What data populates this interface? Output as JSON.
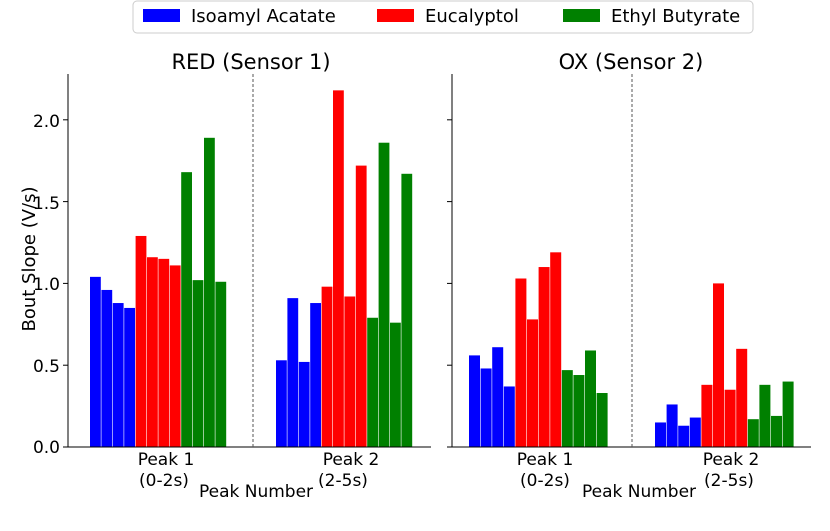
{
  "chart_data": {
    "type": "bar",
    "ylabel": "Bout Slope (V/s)",
    "ylim": [
      0,
      2.28
    ],
    "yticks": [
      0.0,
      0.5,
      1.0,
      1.5,
      2.0
    ],
    "ytick_labels": [
      "0.0",
      "0.5",
      "1.0",
      "1.5",
      "2.0"
    ],
    "legend": {
      "placement": "top-center",
      "entries": [
        {
          "name": "Isoamyl Acatate",
          "color": "#0000ff"
        },
        {
          "name": "Eucalyptol",
          "color": "#ff0000"
        },
        {
          "name": "Ethyl Butyrate",
          "color": "#008000"
        }
      ]
    },
    "panels": [
      {
        "title": "RED (Sensor 1)",
        "xlabel": "Peak Number",
        "categories": [
          {
            "line1": "Peak 1",
            "line2": "(0-2s)"
          },
          {
            "line1": "Peak 2",
            "line2": "(2-5s)"
          }
        ],
        "series": [
          {
            "name": "Isoamyl Acatate",
            "values": [
              [
                1.04,
                0.96,
                0.88,
                0.85
              ],
              [
                0.53,
                0.91,
                0.52,
                0.88
              ]
            ]
          },
          {
            "name": "Eucalyptol",
            "values": [
              [
                1.29,
                1.16,
                1.15,
                1.11
              ],
              [
                0.98,
                2.18,
                0.92,
                1.72
              ]
            ]
          },
          {
            "name": "Ethyl Butyrate",
            "values": [
              [
                1.68,
                1.02,
                1.89,
                1.01
              ],
              [
                0.79,
                1.86,
                0.76,
                1.67
              ]
            ]
          }
        ]
      },
      {
        "title": "OX (Sensor 2)",
        "xlabel": "Peak Number",
        "categories": [
          {
            "line1": "Peak 1",
            "line2": "(0-2s)"
          },
          {
            "line1": "Peak 2",
            "line2": "(2-5s)"
          }
        ],
        "series": [
          {
            "name": "Isoamyl Acatate",
            "values": [
              [
                0.56,
                0.48,
                0.61,
                0.37
              ],
              [
                0.15,
                0.26,
                0.13,
                0.18
              ]
            ]
          },
          {
            "name": "Eucalyptol",
            "values": [
              [
                1.03,
                0.78,
                1.1,
                1.19
              ],
              [
                0.38,
                1.0,
                0.35,
                0.6
              ]
            ]
          },
          {
            "name": "Ethyl Butyrate",
            "values": [
              [
                0.47,
                0.44,
                0.59,
                0.33
              ],
              [
                0.17,
                0.38,
                0.19,
                0.4
              ]
            ]
          }
        ]
      }
    ]
  }
}
